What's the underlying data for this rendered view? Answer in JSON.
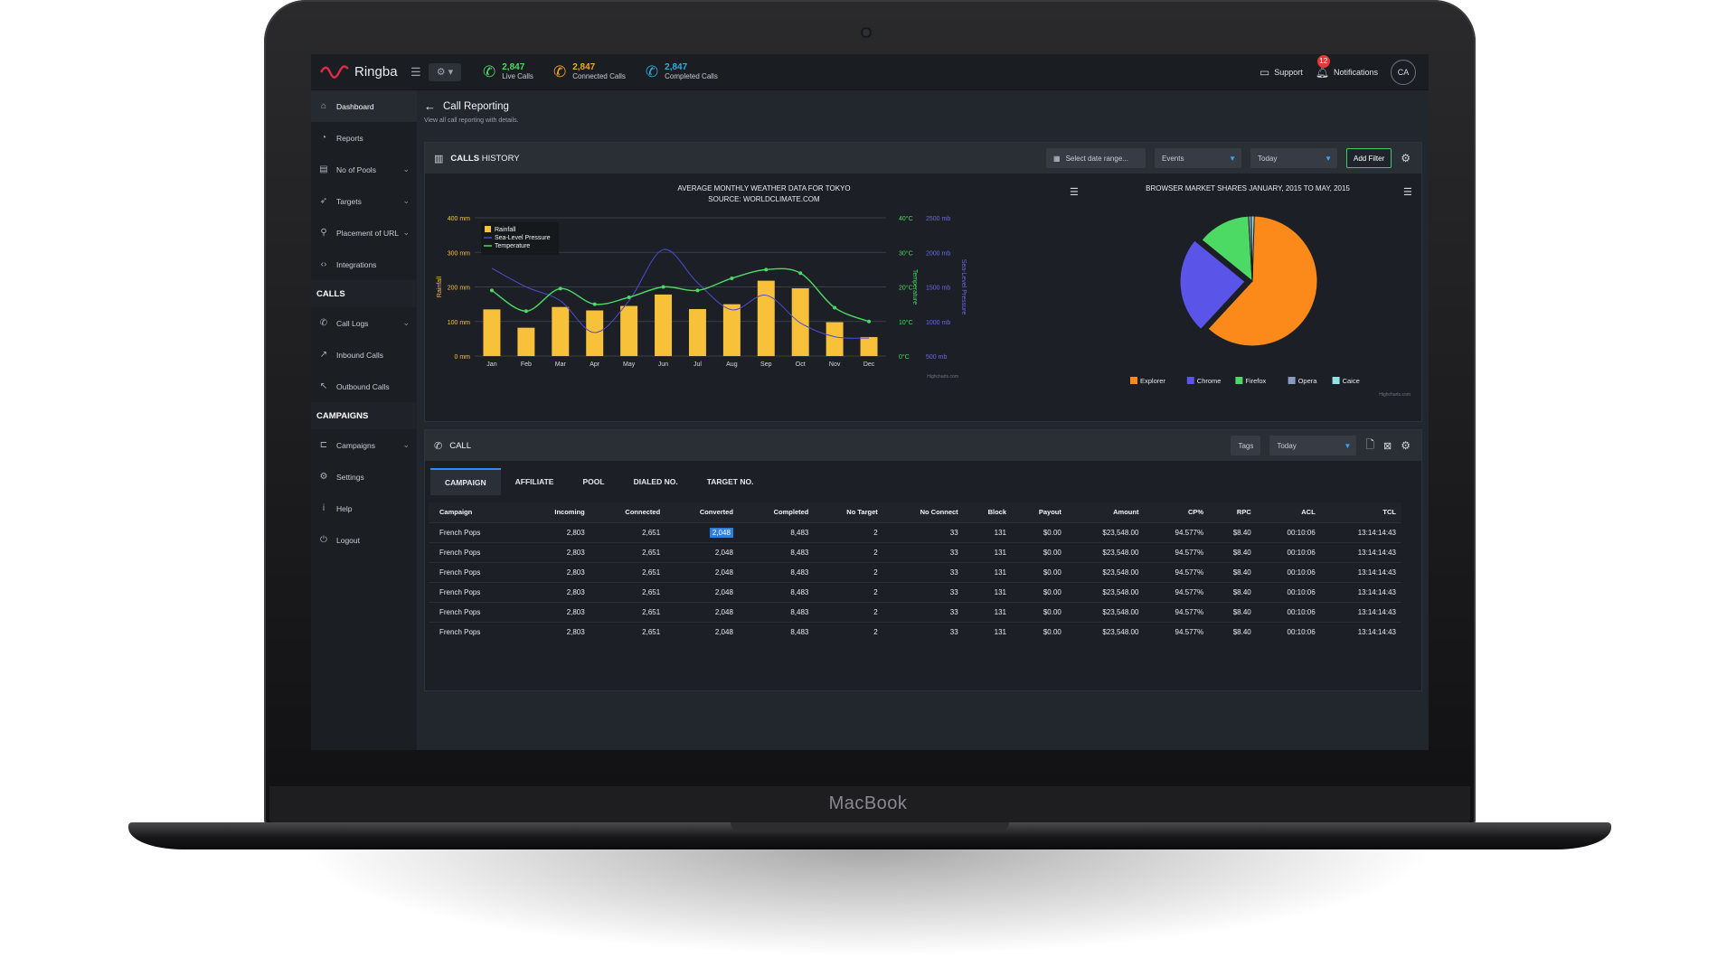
{
  "device": {
    "brand": "MacBook"
  },
  "topbar": {
    "logo": "Ringba",
    "stats": [
      {
        "value": "2,847",
        "label": "Live Calls",
        "color": "#4cd964",
        "icon": "phone-icon"
      },
      {
        "value": "2,847",
        "label": "Connected Calls",
        "color": "#f5a623",
        "icon": "phone-icon"
      },
      {
        "value": "2,847",
        "label": "Completed Calls",
        "color": "#34aadc",
        "icon": "phone-icon"
      }
    ],
    "support": "Support",
    "notifications": "Notifications",
    "notification_count": "12",
    "avatar": "CA"
  },
  "sidebar": {
    "items": [
      {
        "label": "Dashboard",
        "icon": "home-icon",
        "active": true
      },
      {
        "label": "Reports",
        "icon": "chart-icon"
      },
      {
        "label": "No of Pools",
        "icon": "pool-icon",
        "expand": true
      },
      {
        "label": "Targets",
        "icon": "target-icon",
        "expand": true
      },
      {
        "label": "Placement of URL",
        "icon": "link-icon",
        "expand": true
      },
      {
        "label": "Integrations",
        "icon": "code-icon"
      }
    ],
    "calls_section": "CALLS",
    "calls_items": [
      {
        "label": "Call Logs",
        "icon": "phone-icon",
        "expand": true
      },
      {
        "label": "Inbound Calls",
        "icon": "inbound-icon"
      },
      {
        "label": "Outbound Calls",
        "icon": "outbound-icon"
      }
    ],
    "campaigns_section": "CAMPAIGNS",
    "campaign_items": [
      {
        "label": "Campaigns",
        "icon": "campaign-icon",
        "expand": true
      },
      {
        "label": "Settings",
        "icon": "gear-icon"
      },
      {
        "label": "Help",
        "icon": "info-icon"
      },
      {
        "label": "Logout",
        "icon": "power-icon"
      }
    ]
  },
  "page": {
    "title": "Call Reporting",
    "subtitle": "View all call reporting with details."
  },
  "history_panel": {
    "title_bold": "CALLS",
    "title_rest": "HISTORY",
    "date_placeholder": "Select date range...",
    "events": "Events",
    "today": "Today",
    "add_filter": "Add Filter"
  },
  "chart_data": [
    {
      "type": "bar",
      "title": "AVERAGE MONTHLY WEATHER DATA FOR TOKYO",
      "subtitle": "SOURCE: WORLDCLIMATE.COM",
      "categories": [
        "Jan",
        "Feb",
        "Mar",
        "Apr",
        "May",
        "Jun",
        "Jul",
        "Aug",
        "Sep",
        "Oct",
        "Nov",
        "Dec"
      ],
      "series": [
        {
          "name": "Rainfall",
          "type": "bar",
          "axis": "left",
          "color": "#f7c23a",
          "values": [
            135,
            82,
            142,
            132,
            145,
            178,
            136,
            150,
            218,
            196,
            98,
            55
          ]
        },
        {
          "name": "Sea-Level Pressure",
          "type": "line",
          "axis": "right2",
          "color": "#4d4bd1",
          "values": [
            1770,
            1500,
            1300,
            840,
            1300,
            2040,
            1560,
            1170,
            1380,
            980,
            780,
            760
          ]
        },
        {
          "name": "Temperature",
          "type": "line",
          "axis": "right1",
          "color": "#4cd964",
          "values": [
            19,
            13,
            19.5,
            15,
            17,
            20,
            19,
            22.5,
            25,
            24,
            14,
            10
          ]
        }
      ],
      "ylabel": "Rainfall",
      "ylim": [
        0,
        400
      ],
      "yticks": [
        "0 mm",
        "100 mm",
        "200 mm",
        "300 mm",
        "400 mm"
      ],
      "y2label": "Temperature",
      "y2lim": [
        0,
        40
      ],
      "y2ticks": [
        "0°C",
        "10°C",
        "20°C",
        "30°C",
        "40°C"
      ],
      "y3label": "Sea-Level Pressure",
      "y3lim": [
        500,
        2500
      ],
      "y3ticks": [
        "500 mb",
        "1000 mb",
        "1500 mb",
        "2000 mb",
        "2500 mb"
      ],
      "credit": "Highcharts.com",
      "legend": "top-left"
    },
    {
      "type": "pie",
      "title": "BROWSER MARKET SHARES JANUARY, 2015 TO MAY, 2015",
      "slices": [
        {
          "name": "Explorer",
          "value": 61.4,
          "color": "#fb8a1b"
        },
        {
          "name": "Chrome",
          "value": 24.0,
          "color": "#5a55e8"
        },
        {
          "name": "Firefox",
          "value": 13.2,
          "color": "#4cd964"
        },
        {
          "name": "Opera",
          "value": 0.7,
          "color": "#8b9bbf"
        },
        {
          "name": "Caice",
          "value": 0.7,
          "color": "#8fe3e3"
        }
      ],
      "credit": "Highcharts.com",
      "legend": "bottom"
    }
  ],
  "call_panel": {
    "title": "CALL",
    "tags": "Tags",
    "today": "Today",
    "tabs": [
      "CAMPAIGN",
      "AFFILIATE",
      "POOL",
      "DIALED NO.",
      "TARGET NO."
    ],
    "columns": [
      "Campaign",
      "Incoming",
      "Connected",
      "Converted",
      "Completed",
      "No Target",
      "No Connect",
      "Block",
      "Payout",
      "Amount",
      "CP%",
      "RPC",
      "ACL",
      "TCL"
    ],
    "rows": [
      [
        "French Pops",
        "2,803",
        "2,651",
        "2,048",
        "8,483",
        "2",
        "33",
        "131",
        "$0.00",
        "$23,548.00",
        "94.577%",
        "$8.40",
        "00:10:06",
        "13:14:14:43"
      ],
      [
        "French Pops",
        "2,803",
        "2,651",
        "2,048",
        "8,483",
        "2",
        "33",
        "131",
        "$0.00",
        "$23,548.00",
        "94.577%",
        "$8.40",
        "00:10:06",
        "13:14:14:43"
      ],
      [
        "French Pops",
        "2,803",
        "2,651",
        "2,048",
        "8,483",
        "2",
        "33",
        "131",
        "$0.00",
        "$23,548.00",
        "94.577%",
        "$8.40",
        "00:10:06",
        "13:14:14:43"
      ],
      [
        "French Pops",
        "2,803",
        "2,651",
        "2,048",
        "8,483",
        "2",
        "33",
        "131",
        "$0.00",
        "$23,548.00",
        "94.577%",
        "$8.40",
        "00:10:06",
        "13:14:14:43"
      ],
      [
        "French Pops",
        "2,803",
        "2,651",
        "2,048",
        "8,483",
        "2",
        "33",
        "131",
        "$0.00",
        "$23,548.00",
        "94.577%",
        "$8.40",
        "00:10:06",
        "13:14:14:43"
      ],
      [
        "French Pops",
        "2,803",
        "2,651",
        "2,048",
        "8,483",
        "2",
        "33",
        "131",
        "$0.00",
        "$23,548.00",
        "94.577%",
        "$8.40",
        "00:10:06",
        "13:14:14:43"
      ]
    ]
  }
}
